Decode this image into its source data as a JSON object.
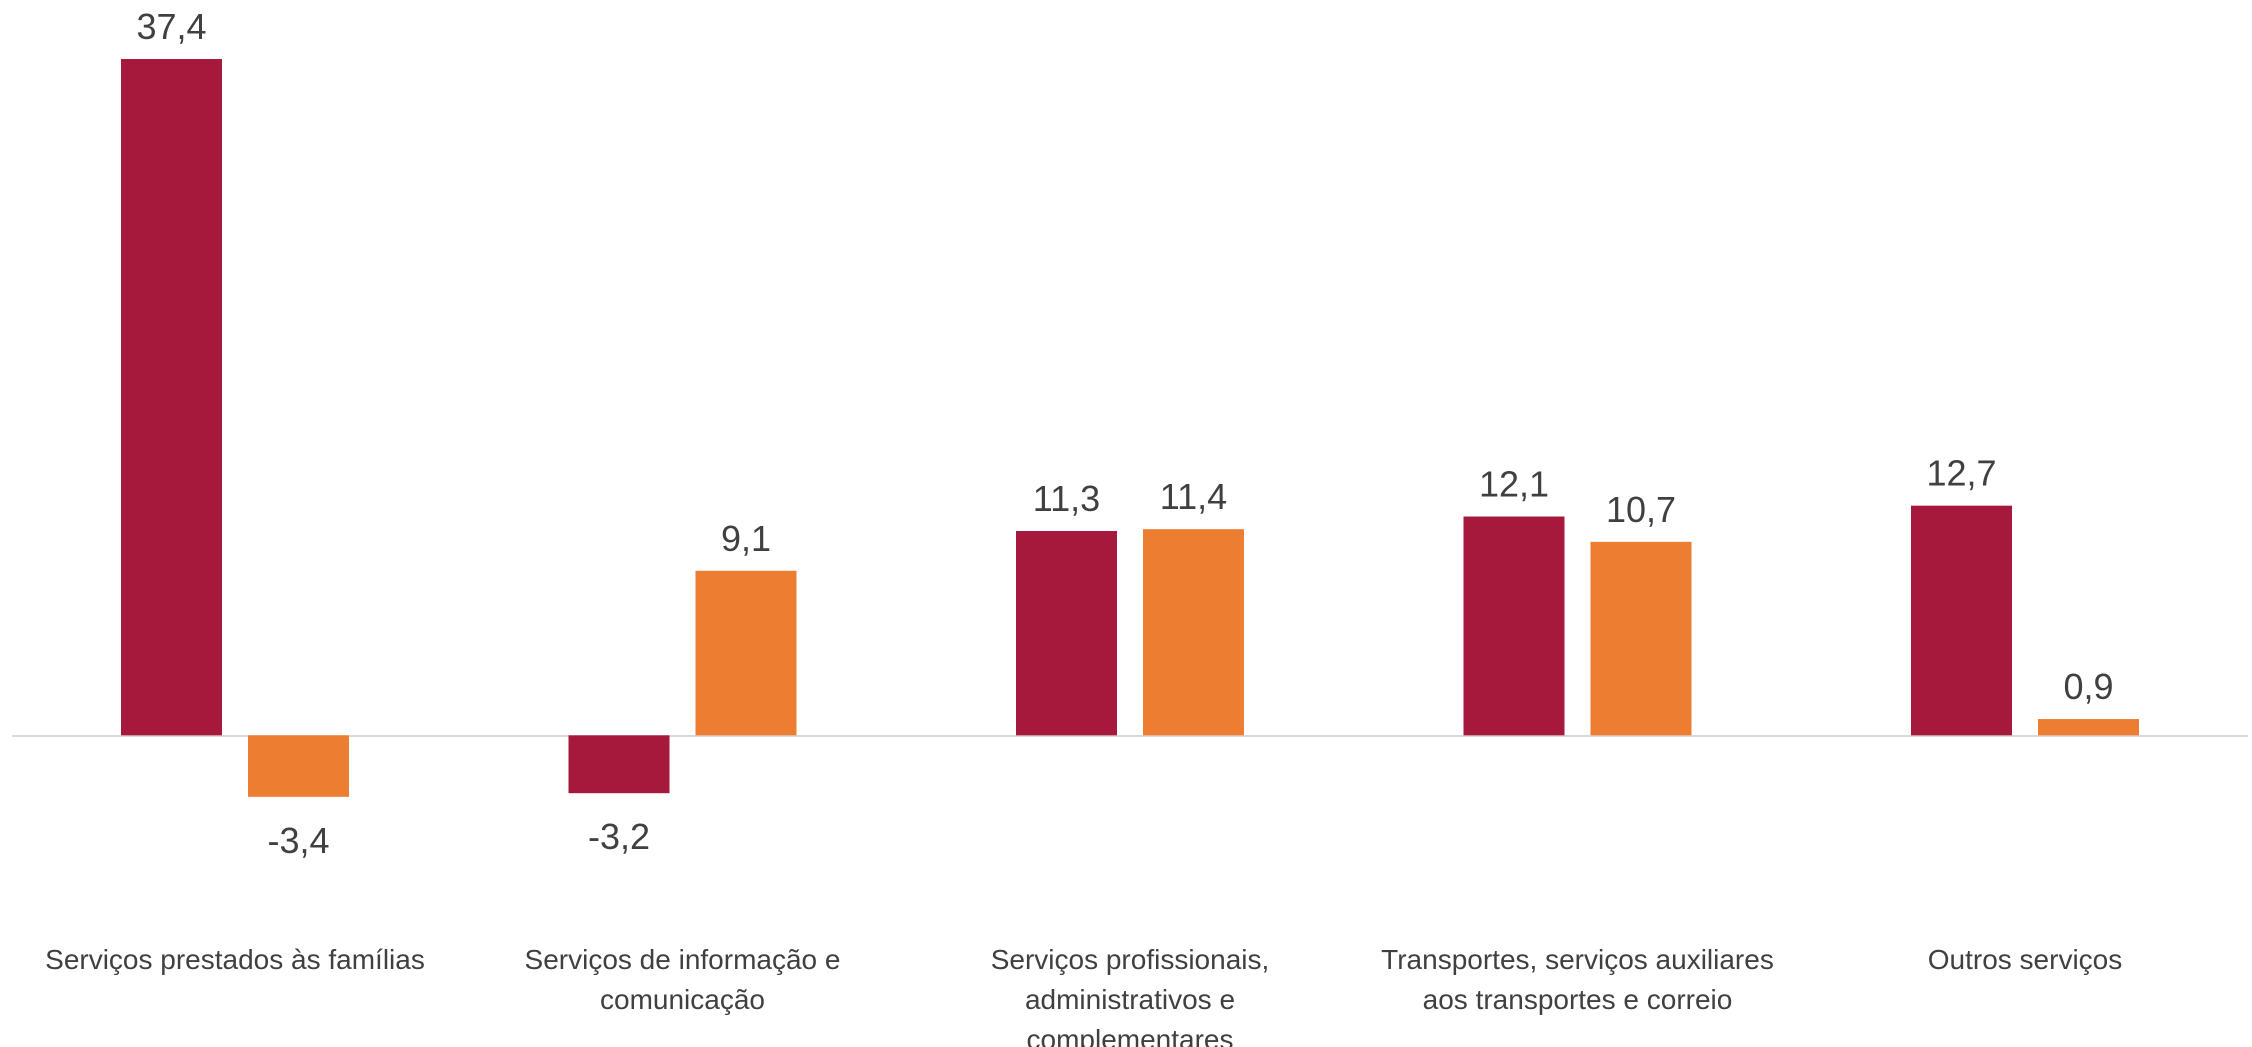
{
  "chart_data": {
    "type": "bar",
    "categories": [
      "Serviços prestados às famílias",
      "Serviços de informação e comunicação",
      "Serviços profissionais, administrativos e complementares",
      "Transportes, serviços auxiliares aos transportes e correio",
      "Outros serviços"
    ],
    "series": [
      {
        "color": "#a6193c",
        "values": [
          37.4,
          -3.2,
          11.3,
          12.1,
          12.7
        ],
        "value_labels": [
          "37,4",
          "-3,2",
          "11,3",
          "12,1",
          "12,7"
        ]
      },
      {
        "color": "#ed7d31",
        "values": [
          -3.4,
          9.1,
          11.4,
          10.7,
          0.9
        ],
        "value_labels": [
          "-3,4",
          "9,1",
          "11,4",
          "10,7",
          "0,9"
        ]
      }
    ],
    "ylim": [
      -8,
      40
    ]
  }
}
